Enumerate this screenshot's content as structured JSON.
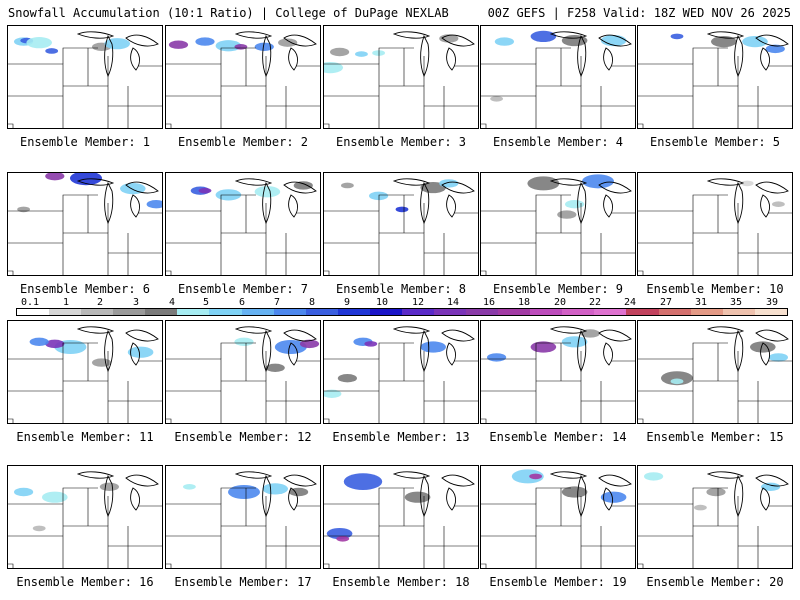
{
  "header": {
    "left": "Snowfall Accumulation (10:1 Ratio) | College of DuPage NEXLAB",
    "right": "00Z GEFS | F258 Valid: 18Z WED NOV 26 2025"
  },
  "legend": {
    "ticks": [
      "0.1",
      "1",
      "2",
      "3",
      "4",
      "5",
      "6",
      "7",
      "8",
      "9",
      "10",
      "12",
      "14",
      "16",
      "18",
      "20",
      "22",
      "24",
      "27",
      "31",
      "35",
      "39"
    ],
    "colors": [
      "#ffffff",
      "#d6d6d6",
      "#b8b8b8",
      "#9a9a9a",
      "#7a7a7a",
      "#a6ecf2",
      "#7fd2f5",
      "#66b2f2",
      "#4d88ee",
      "#3a5fe0",
      "#2036d6",
      "#1a14c8",
      "#5a2ac8",
      "#7a34b8",
      "#8a3aa8",
      "#a23aa4",
      "#bd4cbc",
      "#d260c6",
      "#df72d0",
      "#c2425e",
      "#d4706e",
      "#e49a86",
      "#efc2ae",
      "#f7e0cf"
    ]
  },
  "members": [
    {
      "label": "Ensemble Member: 1",
      "snow": [
        [
          10,
          15,
          3,
          "#7fd2f5"
        ],
        [
          12,
          14,
          2,
          "#3a5fe0"
        ],
        [
          20,
          16,
          4,
          "#a6ecf2"
        ],
        [
          28,
          24,
          2,
          "#3a5fe0"
        ],
        [
          60,
          20,
          3,
          "#9a9a9a"
        ],
        [
          70,
          17,
          4,
          "#7fd2f5"
        ]
      ]
    },
    {
      "label": "Ensemble Member: 2",
      "snow": [
        [
          8,
          18,
          3,
          "#8a3aa8"
        ],
        [
          25,
          15,
          3,
          "#4d88ee"
        ],
        [
          40,
          19,
          4,
          "#7fd2f5"
        ],
        [
          48,
          20,
          2,
          "#8a3aa8"
        ],
        [
          63,
          20,
          3,
          "#4d88ee"
        ],
        [
          78,
          16,
          3,
          "#9a9a9a"
        ]
      ]
    },
    {
      "label": "Ensemble Member: 3",
      "snow": [
        [
          10,
          25,
          3,
          "#9a9a9a"
        ],
        [
          4,
          40,
          4,
          "#a6ecf2"
        ],
        [
          24,
          27,
          2,
          "#7fd2f5"
        ],
        [
          35,
          26,
          2,
          "#a6ecf2"
        ],
        [
          80,
          12,
          3,
          "#9a9a9a"
        ]
      ]
    },
    {
      "label": "Ensemble Member: 4",
      "snow": [
        [
          15,
          15,
          3,
          "#7fd2f5"
        ],
        [
          40,
          10,
          4,
          "#3a5fe0"
        ],
        [
          60,
          14,
          4,
          "#7a7a7a"
        ],
        [
          85,
          14,
          4,
          "#7fd2f5"
        ],
        [
          10,
          70,
          2,
          "#b8b8b8"
        ]
      ]
    },
    {
      "label": "Ensemble Member: 5",
      "snow": [
        [
          25,
          10,
          2,
          "#3a5fe0"
        ],
        [
          55,
          15,
          4,
          "#7a7a7a"
        ],
        [
          75,
          15,
          4,
          "#7fd2f5"
        ],
        [
          88,
          22,
          3,
          "#4d88ee"
        ]
      ]
    },
    {
      "label": "Ensemble Member: 6",
      "snow": [
        [
          50,
          5,
          5,
          "#2036d6"
        ],
        [
          30,
          3,
          3,
          "#8a3aa8"
        ],
        [
          80,
          15,
          4,
          "#7fd2f5"
        ],
        [
          10,
          35,
          2,
          "#9a9a9a"
        ],
        [
          95,
          30,
          3,
          "#4d88ee"
        ]
      ]
    },
    {
      "label": "Ensemble Member: 7",
      "snow": [
        [
          22,
          17,
          3,
          "#3a5fe0"
        ],
        [
          25,
          17,
          2,
          "#7a34b8"
        ],
        [
          40,
          21,
          4,
          "#7fd2f5"
        ],
        [
          65,
          18,
          4,
          "#a6ecf2"
        ],
        [
          88,
          12,
          3,
          "#7a7a7a"
        ]
      ]
    },
    {
      "label": "Ensemble Member: 8",
      "snow": [
        [
          15,
          12,
          2,
          "#9a9a9a"
        ],
        [
          35,
          22,
          3,
          "#7fd2f5"
        ],
        [
          50,
          35,
          2,
          "#2036d6"
        ],
        [
          70,
          14,
          4,
          "#7a7a7a"
        ],
        [
          80,
          10,
          3,
          "#7fd2f5"
        ]
      ]
    },
    {
      "label": "Ensemble Member: 9",
      "snow": [
        [
          40,
          10,
          5,
          "#7a7a7a"
        ],
        [
          75,
          8,
          5,
          "#4d88ee"
        ],
        [
          60,
          30,
          3,
          "#a6ecf2"
        ],
        [
          55,
          40,
          3,
          "#9a9a9a"
        ]
      ]
    },
    {
      "label": "Ensemble Member: 10",
      "snow": [
        [
          70,
          10,
          2,
          "#d6d6d6"
        ],
        [
          90,
          30,
          2,
          "#b8b8b8"
        ]
      ]
    },
    {
      "label": "Ensemble Member: 11",
      "snow": [
        [
          40,
          25,
          5,
          "#7fd2f5"
        ],
        [
          30,
          22,
          3,
          "#7a34b8"
        ],
        [
          20,
          20,
          3,
          "#4d88ee"
        ],
        [
          85,
          30,
          4,
          "#7fd2f5"
        ],
        [
          60,
          40,
          3,
          "#9a9a9a"
        ]
      ]
    },
    {
      "label": "Ensemble Member: 12",
      "snow": [
        [
          50,
          20,
          3,
          "#a6ecf2"
        ],
        [
          80,
          25,
          5,
          "#4d88ee"
        ],
        [
          92,
          22,
          3,
          "#8a3aa8"
        ],
        [
          70,
          45,
          3,
          "#7a7a7a"
        ]
      ]
    },
    {
      "label": "Ensemble Member: 13",
      "snow": [
        [
          25,
          20,
          3,
          "#4d88ee"
        ],
        [
          30,
          22,
          2,
          "#7a34b8"
        ],
        [
          70,
          25,
          4,
          "#4d88ee"
        ],
        [
          15,
          55,
          3,
          "#7a7a7a"
        ],
        [
          5,
          70,
          3,
          "#a6ecf2"
        ]
      ]
    },
    {
      "label": "Ensemble Member: 14",
      "snow": [
        [
          10,
          35,
          3,
          "#4d88ee"
        ],
        [
          40,
          25,
          4,
          "#8a3aa8"
        ],
        [
          60,
          20,
          4,
          "#7fd2f5"
        ],
        [
          70,
          12,
          3,
          "#9a9a9a"
        ]
      ]
    },
    {
      "label": "Ensemble Member: 15",
      "snow": [
        [
          25,
          55,
          5,
          "#7a7a7a"
        ],
        [
          25,
          58,
          2,
          "#a6ecf2"
        ],
        [
          80,
          25,
          4,
          "#7a7a7a"
        ],
        [
          90,
          35,
          3,
          "#7fd2f5"
        ]
      ]
    },
    {
      "label": "Ensemble Member: 16",
      "snow": [
        [
          10,
          25,
          3,
          "#7fd2f5"
        ],
        [
          30,
          30,
          4,
          "#a6ecf2"
        ],
        [
          65,
          20,
          3,
          "#9a9a9a"
        ],
        [
          20,
          60,
          2,
          "#b8b8b8"
        ]
      ]
    },
    {
      "label": "Ensemble Member: 17",
      "snow": [
        [
          50,
          25,
          5,
          "#4d88ee"
        ],
        [
          70,
          22,
          4,
          "#7fd2f5"
        ],
        [
          15,
          20,
          2,
          "#a6ecf2"
        ],
        [
          85,
          25,
          3,
          "#7a7a7a"
        ]
      ]
    },
    {
      "label": "Ensemble Member: 18",
      "snow": [
        [
          25,
          15,
          6,
          "#3a5fe0"
        ],
        [
          10,
          65,
          4,
          "#3a5fe0"
        ],
        [
          12,
          70,
          2,
          "#a23aa4"
        ],
        [
          60,
          30,
          4,
          "#7a7a7a"
        ]
      ]
    },
    {
      "label": "Ensemble Member: 19",
      "snow": [
        [
          30,
          10,
          5,
          "#7fd2f5"
        ],
        [
          35,
          10,
          2,
          "#a23aa4"
        ],
        [
          60,
          25,
          4,
          "#7a7a7a"
        ],
        [
          85,
          30,
          4,
          "#4d88ee"
        ]
      ]
    },
    {
      "label": "Ensemble Member: 20",
      "snow": [
        [
          10,
          10,
          3,
          "#a6ecf2"
        ],
        [
          50,
          25,
          3,
          "#9a9a9a"
        ],
        [
          85,
          20,
          3,
          "#7fd2f5"
        ],
        [
          40,
          40,
          2,
          "#b8b8b8"
        ]
      ]
    }
  ]
}
